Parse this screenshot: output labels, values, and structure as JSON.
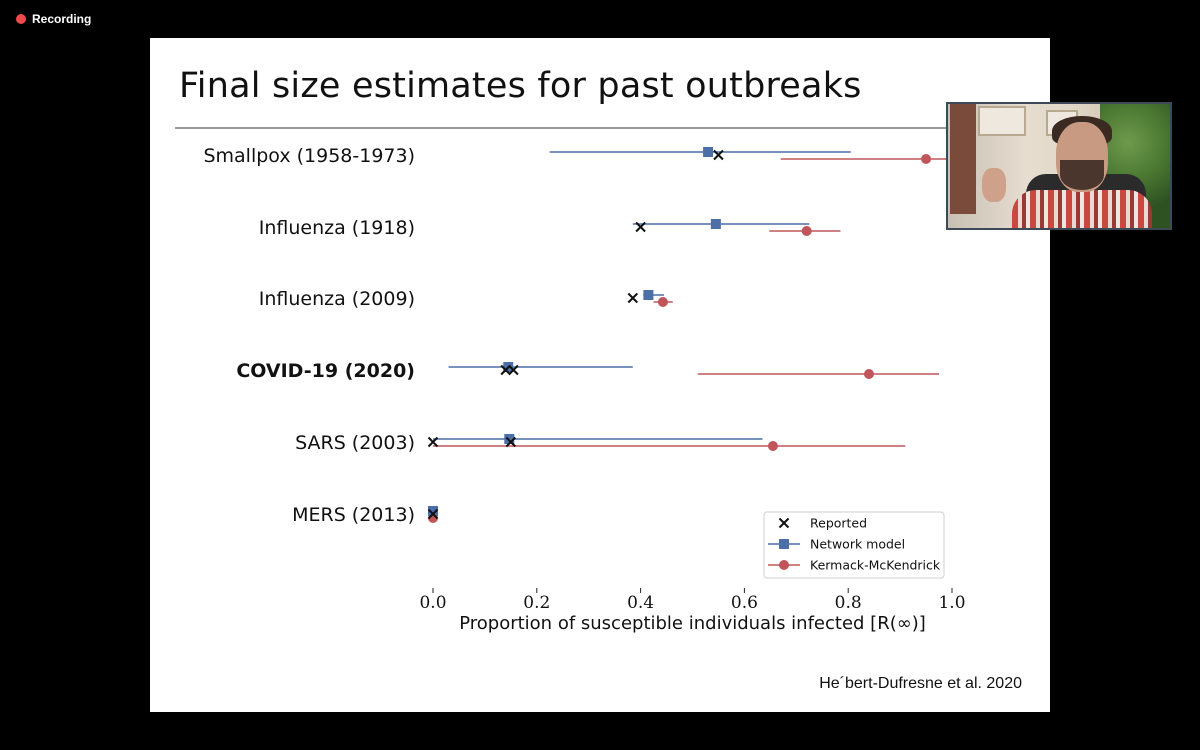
{
  "recording": {
    "label": "Recording",
    "indicator_color": "#f04a4a"
  },
  "slide": {
    "title": "Final size estimates for past outbreaks",
    "citation": "He´bert-Dufresne et al. 2020"
  },
  "webcam": {
    "icon": "presenter-video-feed"
  },
  "chart_data": {
    "type": "scatter",
    "title": "",
    "xlabel": "Proportion of susceptible individuals infected [R(∞)]",
    "ylabel": "",
    "xlim": [
      0.0,
      1.0
    ],
    "xticks": [
      "0.0",
      "0.2",
      "0.4",
      "0.6",
      "0.8",
      "1.0"
    ],
    "grid": false,
    "legend_position": "bottom-right",
    "categories": [
      {
        "label": "Smallpox (1958-1973)",
        "bold": false
      },
      {
        "label": "Influenza (1918)",
        "bold": false
      },
      {
        "label": "Influenza (2009)",
        "bold": false
      },
      {
        "label": "COVID-19 (2020)",
        "bold": true
      },
      {
        "label": "SARS (2003)",
        "bold": false
      },
      {
        "label": "MERS (2013)",
        "bold": false
      }
    ],
    "series": [
      {
        "name": "Reported",
        "marker": "x",
        "color": "#111111",
        "points": [
          [
            0.55
          ],
          [
            0.4
          ],
          [
            0.385
          ],
          [
            0.14,
            0.155
          ],
          [
            0.0,
            0.15
          ],
          [
            0.0
          ]
        ]
      },
      {
        "name": "Network model",
        "marker": "square",
        "color": "#4c6fa8",
        "values": [
          0.53,
          0.545,
          0.415,
          0.145,
          0.147,
          0.0
        ],
        "lower": [
          0.225,
          0.385,
          0.405,
          0.03,
          0.0,
          0.0
        ],
        "upper": [
          0.805,
          0.725,
          0.445,
          0.385,
          0.635,
          0.0
        ]
      },
      {
        "name": "Kermack-McKendrick",
        "marker": "circle",
        "color": "#c0555a",
        "values": [
          0.95,
          0.72,
          0.443,
          0.84,
          0.655,
          0.0
        ],
        "lower": [
          0.67,
          0.648,
          0.425,
          0.51,
          0.0,
          0.0
        ],
        "upper": [
          1.0,
          0.785,
          0.462,
          0.975,
          0.91,
          0.0
        ]
      }
    ]
  }
}
